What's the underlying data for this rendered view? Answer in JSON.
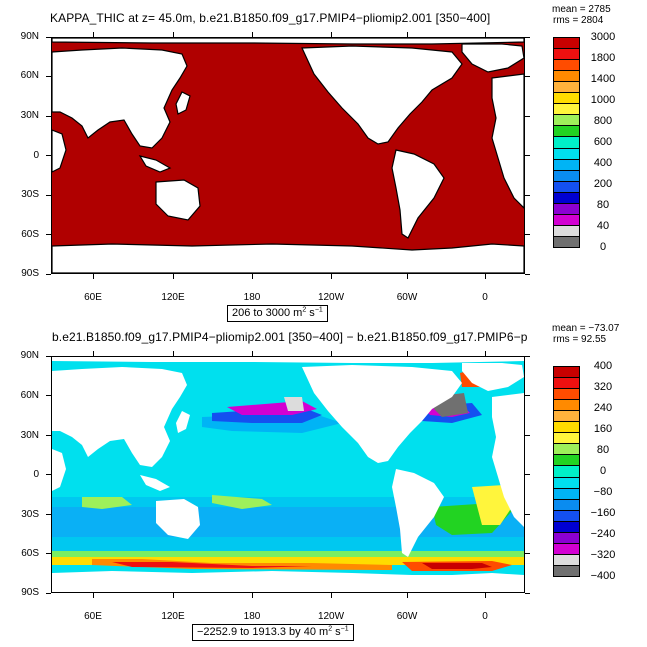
{
  "top": {
    "title": "KAPPA_THIC at z=   45.0m, b.e21.B1850.f09_g17.PMIP4−pliomip2.001  [350−400]",
    "mean": "mean = 2785",
    "rms": "rms = 2804",
    "range_prefix": "206 to 3000 m",
    "range_exp": "2",
    "range_unit": " s",
    "range_exp2": "−1",
    "colorbar_labels": [
      "3000",
      "1800",
      "1400",
      "1000",
      "800",
      "600",
      "400",
      "200",
      "80",
      "40",
      "0"
    ],
    "colors": [
      "#c80000",
      "#ee1010",
      "#ff4c00",
      "#ff8a00",
      "#ffb23c",
      "#ffdc00",
      "#fff53c",
      "#9ef05a",
      "#22d322",
      "#00f0c8",
      "#00e0ee",
      "#00b4f5",
      "#0a8cf0",
      "#1450f0",
      "#0000d2",
      "#8c00d2",
      "#d200d2",
      "#dcdcdc",
      "#707070"
    ],
    "fill_color": "#b00000"
  },
  "bottom": {
    "title": "b.e21.B1850.f09_g17.PMIP4−pliomip2.001  [350−400]  −  b.e21.B1850.f09_g17.PMIP6−p",
    "mean": "mean = −73.07",
    "rms": "rms = 92.55",
    "range_prefix": "−2252.9 to 1913.3 by 40 m",
    "range_exp": "2",
    "range_unit": " s",
    "range_exp2": "−1",
    "colorbar_labels": [
      "400",
      "320",
      "240",
      "160",
      "80",
      "0",
      "−80",
      "−160",
      "−240",
      "−320",
      "−400"
    ],
    "colors": [
      "#c80000",
      "#ee1010",
      "#ff4c00",
      "#ff8a00",
      "#ffb23c",
      "#ffdc00",
      "#fff53c",
      "#9ef05a",
      "#22d322",
      "#00f0c8",
      "#00e0ee",
      "#00b4f5",
      "#0a8cf0",
      "#1450f0",
      "#0000d2",
      "#8c00d2",
      "#d200d2",
      "#dcdcdc",
      "#707070"
    ]
  },
  "lat_labels": [
    "90N",
    "60N",
    "30N",
    "0",
    "30S",
    "60S",
    "90S"
  ],
  "lon_labels": [
    "60E",
    "120E",
    "180",
    "120W",
    "60W",
    "0"
  ]
}
